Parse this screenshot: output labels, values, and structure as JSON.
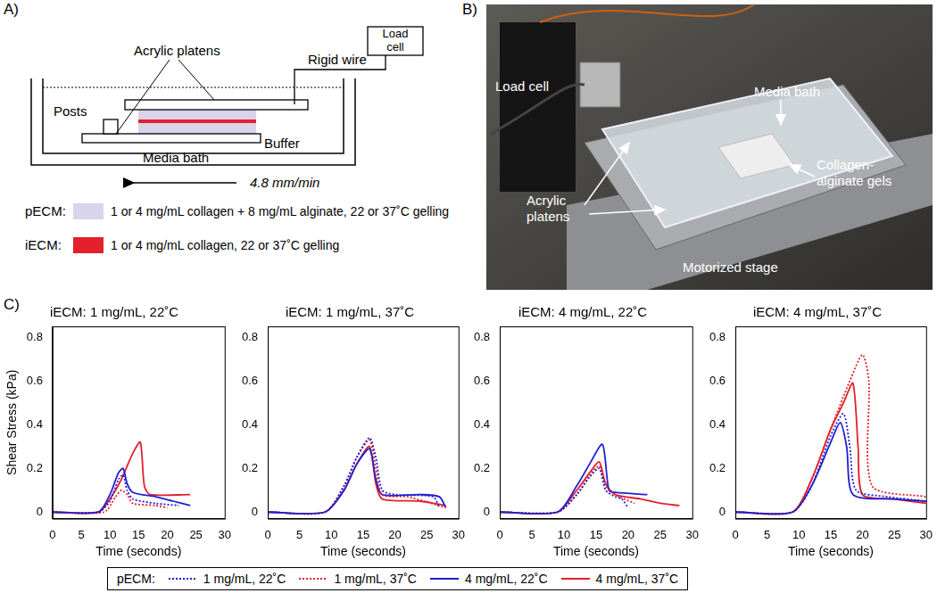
{
  "panel_labels": [
    "A)",
    "B)",
    "C)"
  ],
  "diagram": {
    "labels": {
      "platens": "Acrylic platens",
      "wire": "Rigid wire",
      "load_cell": "Load cell",
      "posts": "Posts",
      "buffer": "Buffer",
      "bath": "Media bath",
      "speed": "4.8 mm/min"
    },
    "legend": [
      {
        "name": "pECM:",
        "color": "#d9d4ea",
        "text": "1 or 4 mg/mL collagen + 8 mg/mL alginate, 22 or 37˚C gelling"
      },
      {
        "name": "iECM:",
        "color": "#e3202b",
        "text": "1 or 4 mg/mL collagen, 22 or 37˚C gelling"
      }
    ]
  },
  "photo": {
    "labels": [
      "Load cell",
      "Media bath",
      "Collagen-alginate gels",
      "Acrylic platens",
      "Motorized stage"
    ]
  },
  "legend_title": "pECM:",
  "chart_data": [
    {
      "type": "line",
      "title": "iECM: 1 mg/mL, 22˚C",
      "xlabel": "Time (seconds)",
      "ylabel": "Shear Stress (kPa)",
      "xlim": [
        0,
        30
      ],
      "xticks": [
        0,
        5,
        10,
        15,
        20,
        25,
        30
      ],
      "ylim": [
        -0.03,
        0.85
      ],
      "yticks": [
        0,
        0.2,
        0.4,
        0.6,
        0.8
      ],
      "grid": false,
      "series": [
        {
          "name": "1 mg/mL, 22˚C",
          "color": "#1f1fd0",
          "line_style": "dotted",
          "x": [
            0,
            8,
            10,
            11.5,
            12.3,
            13,
            14,
            18,
            22
          ],
          "values": [
            0,
            0,
            0.05,
            0.15,
            0.17,
            0.1,
            0.06,
            0.04,
            0.03
          ]
        },
        {
          "name": "1 mg/mL, 37˚C",
          "color": "#e3202b",
          "line_style": "dotted",
          "x": [
            0,
            9,
            11,
            12,
            13,
            14,
            18,
            20
          ],
          "values": [
            0,
            0,
            0.07,
            0.1,
            0.08,
            0.04,
            0.03,
            0.02
          ]
        },
        {
          "name": "4 mg/mL, 22˚C",
          "color": "#1f1fd0",
          "line_style": "solid",
          "x": [
            0,
            8,
            10,
            11.5,
            12.3,
            13,
            14,
            18,
            21,
            24
          ],
          "values": [
            0,
            0,
            0.08,
            0.18,
            0.2,
            0.13,
            0.09,
            0.07,
            0.05,
            0.03
          ]
        },
        {
          "name": "4 mg/mL, 37˚C",
          "color": "#e3202b",
          "line_style": "solid",
          "x": [
            0,
            8,
            10,
            12,
            14,
            15.3,
            16,
            17,
            24
          ],
          "values": [
            0,
            0,
            0.06,
            0.15,
            0.27,
            0.32,
            0.12,
            0.08,
            0.08
          ]
        }
      ]
    },
    {
      "type": "line",
      "title": "iECM: 1 mg/mL, 37˚C",
      "xlabel": "Time (seconds)",
      "xlim": [
        0,
        30
      ],
      "xticks": [
        0,
        5,
        10,
        15,
        20,
        25,
        30
      ],
      "ylim": [
        -0.03,
        0.85
      ],
      "yticks": [
        0,
        0.2,
        0.4,
        0.6,
        0.8
      ],
      "grid": false,
      "series": [
        {
          "name": "1 mg/mL, 22˚C",
          "color": "#1f1fd0",
          "line_style": "dotted",
          "x": [
            0,
            9,
            12,
            14,
            16,
            17,
            18,
            20,
            26,
            27
          ],
          "values": [
            0,
            0,
            0.12,
            0.25,
            0.34,
            0.25,
            0.1,
            0.08,
            0.07,
            0.02
          ]
        },
        {
          "name": "1 mg/mL, 37˚C",
          "color": "#e3202b",
          "line_style": "dotted",
          "x": [
            0,
            9,
            12,
            14,
            16,
            17,
            18,
            22,
            28
          ],
          "values": [
            0,
            0,
            0.12,
            0.25,
            0.33,
            0.2,
            0.08,
            0.07,
            0.02
          ]
        },
        {
          "name": "4 mg/mL, 22˚C",
          "color": "#1f1fd0",
          "line_style": "solid",
          "x": [
            0,
            9,
            12,
            14,
            16,
            17,
            18,
            24,
            27,
            28
          ],
          "values": [
            0,
            0,
            0.1,
            0.22,
            0.29,
            0.15,
            0.08,
            0.08,
            0.07,
            0.02
          ]
        },
        {
          "name": "4 mg/mL, 37˚C",
          "color": "#e3202b",
          "line_style": "solid",
          "x": [
            0,
            9,
            12,
            14,
            16,
            17,
            18,
            24,
            28
          ],
          "values": [
            0,
            0,
            0.1,
            0.22,
            0.3,
            0.13,
            0.06,
            0.05,
            0.03
          ]
        }
      ]
    },
    {
      "type": "line",
      "title": "iECM: 4 mg/mL, 22˚C",
      "xlabel": "Time (seconds)",
      "xlim": [
        0,
        30
      ],
      "xticks": [
        0,
        5,
        10,
        15,
        20,
        25,
        30
      ],
      "ylim": [
        -0.03,
        0.85
      ],
      "yticks": [
        0,
        0.2,
        0.4,
        0.6,
        0.8
      ],
      "grid": false,
      "series": [
        {
          "name": "1 mg/mL, 22˚C",
          "color": "#1f1fd0",
          "line_style": "dotted",
          "x": [
            0,
            9,
            12,
            14,
            15.5,
            16.5,
            18,
            19,
            20
          ],
          "values": [
            0,
            0,
            0.08,
            0.16,
            0.2,
            0.1,
            0.07,
            0.06,
            0.02
          ]
        },
        {
          "name": "1 mg/mL, 37˚C",
          "color": "#e3202b",
          "line_style": "dotted",
          "x": [
            0,
            9,
            12,
            14,
            15.5,
            16.5,
            18,
            21
          ],
          "values": [
            0,
            0,
            0.08,
            0.17,
            0.21,
            0.12,
            0.08,
            0.04
          ]
        },
        {
          "name": "4 mg/mL, 22˚C",
          "color": "#1f1fd0",
          "line_style": "solid",
          "x": [
            0,
            9,
            12,
            14,
            16,
            17,
            18,
            23
          ],
          "values": [
            0,
            0,
            0.12,
            0.22,
            0.31,
            0.1,
            0.09,
            0.08
          ]
        },
        {
          "name": "4 mg/mL, 37˚C",
          "color": "#e3202b",
          "line_style": "solid",
          "x": [
            0,
            9,
            12,
            14,
            15.5,
            16.5,
            18,
            22,
            25,
            28
          ],
          "values": [
            0,
            0,
            0.1,
            0.18,
            0.23,
            0.13,
            0.08,
            0.06,
            0.04,
            0.03
          ]
        }
      ]
    },
    {
      "type": "line",
      "title": "iECM: 4 mg/mL, 37˚C",
      "xlabel": "Time (seconds)",
      "xlim": [
        0,
        30
      ],
      "xticks": [
        0,
        5,
        10,
        15,
        20,
        25,
        30
      ],
      "ylim": [
        -0.03,
        0.85
      ],
      "yticks": [
        0,
        0.2,
        0.4,
        0.6,
        0.8
      ],
      "grid": false,
      "series": [
        {
          "name": "1 mg/mL, 22˚C",
          "color": "#1f1fd0",
          "line_style": "dotted",
          "x": [
            0,
            9,
            12,
            15,
            17,
            18,
            19,
            24,
            30
          ],
          "values": [
            0,
            0,
            0.12,
            0.35,
            0.45,
            0.3,
            0.1,
            0.07,
            0.05
          ]
        },
        {
          "name": "1 mg/mL, 37˚C",
          "color": "#e3202b",
          "line_style": "dotted",
          "x": [
            0,
            9,
            12,
            15,
            18,
            20,
            21,
            21.5,
            30
          ],
          "values": [
            0,
            0,
            0.15,
            0.38,
            0.6,
            0.72,
            0.6,
            0.12,
            0.07
          ]
        },
        {
          "name": "4 mg/mL, 22˚C",
          "color": "#1f1fd0",
          "line_style": "solid",
          "x": [
            0,
            9,
            12,
            15,
            16.5,
            17.5,
            18.5,
            25,
            30
          ],
          "values": [
            0,
            0,
            0.12,
            0.32,
            0.41,
            0.3,
            0.08,
            0.06,
            0.05
          ]
        },
        {
          "name": "4 mg/mL, 37˚C",
          "color": "#e3202b",
          "line_style": "solid",
          "x": [
            0,
            9,
            12,
            15,
            17,
            18.5,
            19.3,
            20,
            25,
            30
          ],
          "values": [
            0,
            0,
            0.15,
            0.38,
            0.5,
            0.59,
            0.3,
            0.08,
            0.06,
            0.04
          ]
        }
      ]
    }
  ]
}
